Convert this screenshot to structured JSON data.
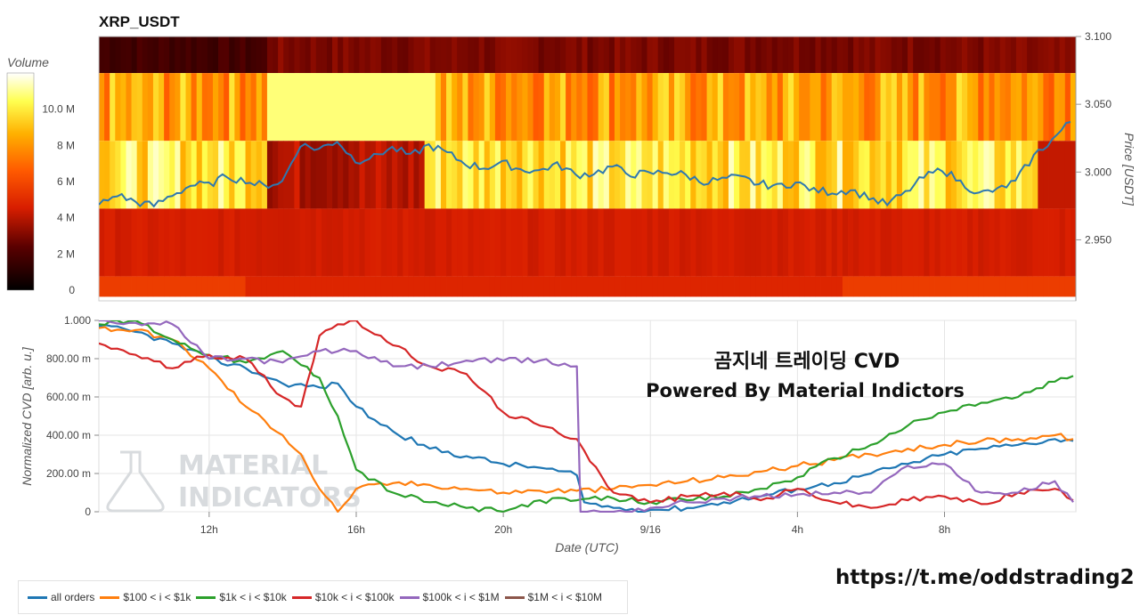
{
  "colors": {
    "all_orders": "#1f77b4",
    "s100_1k": "#ff7f0e",
    "s1k_10k": "#2ca02c",
    "s10k_100k": "#d62728",
    "s100k_1m": "#9467bd",
    "s1m_10m": "#8c564b",
    "price_line": "#2e78b0"
  },
  "chart_data": [
    {
      "type": "heatmap",
      "title": "XRP_USDT",
      "ylabel": "Price [USDT]",
      "ylim": [
        2.905,
        3.1
      ],
      "yticks": [
        "3.100",
        "3.050",
        "3.000",
        "2.950"
      ],
      "colorbar": {
        "label": "Volume",
        "ticks": [
          "10.0 M",
          "8 M",
          "6 M",
          "4 M",
          "2 M",
          "0"
        ],
        "range": [
          0,
          12
        ]
      },
      "price_bands": [
        {
          "low": 3.073,
          "high": 3.1,
          "base": 2.5
        },
        {
          "low": 3.023,
          "high": 3.073,
          "base": 7.0
        },
        {
          "low": 2.973,
          "high": 3.023,
          "base": 8.5
        },
        {
          "low": 2.923,
          "high": 2.973,
          "base": 4.4
        },
        {
          "low": 2.908,
          "high": 2.923,
          "base": 5.6
        }
      ],
      "price_series": [
        {
          "t": 0.0,
          "p": 2.976
        },
        {
          "t": 0.5,
          "p": 2.983
        },
        {
          "t": 1.0,
          "p": 2.978
        },
        {
          "t": 1.5,
          "p": 2.975
        },
        {
          "t": 2.0,
          "p": 2.983
        },
        {
          "t": 2.5,
          "p": 2.99
        },
        {
          "t": 3.0,
          "p": 2.991
        },
        {
          "t": 3.5,
          "p": 2.997
        },
        {
          "t": 4.0,
          "p": 2.993
        },
        {
          "t": 4.5,
          "p": 2.99
        },
        {
          "t": 5.0,
          "p": 2.993
        },
        {
          "t": 5.5,
          "p": 3.02
        },
        {
          "t": 6.0,
          "p": 3.017
        },
        {
          "t": 6.5,
          "p": 3.023
        },
        {
          "t": 7.0,
          "p": 3.008
        },
        {
          "t": 7.5,
          "p": 3.012
        },
        {
          "t": 8.0,
          "p": 3.018
        },
        {
          "t": 8.5,
          "p": 3.012
        },
        {
          "t": 9.0,
          "p": 3.02
        },
        {
          "t": 9.5,
          "p": 3.014
        },
        {
          "t": 10.0,
          "p": 3.006
        },
        {
          "t": 10.5,
          "p": 3.003
        },
        {
          "t": 11.0,
          "p": 3.007
        },
        {
          "t": 11.5,
          "p": 3.002
        },
        {
          "t": 12.0,
          "p": 3.001
        },
        {
          "t": 12.5,
          "p": 3.006
        },
        {
          "t": 13.0,
          "p": 2.998
        },
        {
          "t": 13.5,
          "p": 2.999
        },
        {
          "t": 14.0,
          "p": 3.004
        },
        {
          "t": 14.5,
          "p": 2.998
        },
        {
          "t": 15.0,
          "p": 2.999
        },
        {
          "t": 15.5,
          "p": 3.0
        },
        {
          "t": 16.0,
          "p": 2.998
        },
        {
          "t": 16.5,
          "p": 2.992
        },
        {
          "t": 17.0,
          "p": 2.995
        },
        {
          "t": 17.5,
          "p": 2.996
        },
        {
          "t": 18.0,
          "p": 2.991
        },
        {
          "t": 18.5,
          "p": 2.99
        },
        {
          "t": 19.0,
          "p": 2.992
        },
        {
          "t": 19.5,
          "p": 2.987
        },
        {
          "t": 20.0,
          "p": 2.985
        },
        {
          "t": 20.5,
          "p": 2.987
        },
        {
          "t": 21.0,
          "p": 2.981
        },
        {
          "t": 21.5,
          "p": 2.976
        },
        {
          "t": 22.0,
          "p": 2.985
        },
        {
          "t": 22.5,
          "p": 2.996
        },
        {
          "t": 23.0,
          "p": 3.002
        },
        {
          "t": 23.5,
          "p": 2.993
        },
        {
          "t": 24.0,
          "p": 2.984
        },
        {
          "t": 24.5,
          "p": 2.987
        },
        {
          "t": 25.0,
          "p": 2.993
        },
        {
          "t": 25.5,
          "p": 3.012
        },
        {
          "t": 26.0,
          "p": 3.024
        },
        {
          "t": 26.5,
          "p": 3.037
        }
      ]
    },
    {
      "type": "line",
      "xlabel": "Date (UTC)",
      "ylabel": "Normalized CVD [arb. u.]",
      "xlim": [
        0,
        26.5
      ],
      "ylim": [
        0,
        1.0
      ],
      "xticks": [
        {
          "t": 3.0,
          "label": "12h"
        },
        {
          "t": 7.0,
          "label": "16h"
        },
        {
          "t": 11.0,
          "label": "20h"
        },
        {
          "t": 15.0,
          "label": "9/16"
        },
        {
          "t": 19.0,
          "label": "4h"
        },
        {
          "t": 23.0,
          "label": "8h"
        }
      ],
      "yticks": [
        {
          "v": 1.0,
          "label": "1.000"
        },
        {
          "v": 0.8,
          "label": "800.00 m"
        },
        {
          "v": 0.6,
          "label": "600.00 m"
        },
        {
          "v": 0.4,
          "label": "400.00 m"
        },
        {
          "v": 0.2,
          "label": "200.00 m"
        },
        {
          "v": 0.0,
          "label": "0"
        }
      ],
      "series": [
        {
          "name": "all orders",
          "color_key": "all_orders",
          "x": [
            0,
            1,
            2,
            3,
            4,
            5,
            6,
            6.5,
            7,
            7.5,
            8,
            9,
            10,
            11,
            12,
            13,
            13.2,
            14,
            15,
            16,
            17,
            18,
            19,
            20,
            21,
            22,
            23,
            24,
            25,
            26,
            26.5
          ],
          "y": [
            0.97,
            0.94,
            0.88,
            0.8,
            0.75,
            0.67,
            0.65,
            0.67,
            0.55,
            0.48,
            0.42,
            0.33,
            0.29,
            0.25,
            0.23,
            0.19,
            0.05,
            0.02,
            0.01,
            0.02,
            0.05,
            0.08,
            0.12,
            0.15,
            0.2,
            0.25,
            0.3,
            0.33,
            0.35,
            0.38,
            0.37
          ]
        },
        {
          "name": "$100 < i < $1k",
          "color_key": "s100_1k",
          "x": [
            0,
            1,
            2,
            3,
            4,
            5,
            5.5,
            6,
            6.5,
            7,
            8,
            9,
            10,
            11,
            12,
            13,
            14,
            15,
            16,
            17,
            18,
            19,
            20,
            21,
            22,
            23,
            24,
            25,
            26,
            26.5
          ],
          "y": [
            0.96,
            0.95,
            0.9,
            0.75,
            0.55,
            0.4,
            0.3,
            0.12,
            0.0,
            0.12,
            0.15,
            0.14,
            0.12,
            0.1,
            0.11,
            0.11,
            0.12,
            0.14,
            0.16,
            0.18,
            0.21,
            0.24,
            0.27,
            0.3,
            0.33,
            0.35,
            0.37,
            0.38,
            0.4,
            0.38
          ]
        },
        {
          "name": "$1k < i < $10k",
          "color_key": "s1k_10k",
          "x": [
            0,
            1,
            2,
            3,
            4,
            4.5,
            5,
            6,
            6.5,
            7,
            8,
            9,
            10,
            11,
            12,
            13,
            14,
            15,
            16,
            17,
            18,
            19,
            20,
            21,
            22,
            23,
            24,
            25,
            26,
            26.5
          ],
          "y": [
            0.98,
            1.0,
            0.9,
            0.82,
            0.78,
            0.8,
            0.84,
            0.7,
            0.5,
            0.22,
            0.1,
            0.05,
            0.02,
            0.0,
            0.06,
            0.06,
            0.07,
            0.05,
            0.06,
            0.08,
            0.12,
            0.18,
            0.28,
            0.35,
            0.45,
            0.52,
            0.57,
            0.6,
            0.68,
            0.71
          ]
        },
        {
          "name": "$10k < i < $100k",
          "color_key": "s10k_100k",
          "x": [
            0,
            1,
            2,
            3,
            4,
            5,
            5.5,
            6,
            6.5,
            7,
            8,
            9,
            10,
            11,
            12,
            13,
            13.2,
            14,
            15,
            16,
            17,
            18,
            19,
            20,
            21,
            22,
            23,
            24,
            25,
            26,
            26.5
          ],
          "y": [
            0.88,
            0.82,
            0.75,
            0.82,
            0.8,
            0.6,
            0.55,
            0.92,
            0.98,
            1.0,
            0.87,
            0.76,
            0.72,
            0.52,
            0.45,
            0.38,
            0.32,
            0.1,
            0.05,
            0.08,
            0.1,
            0.06,
            0.12,
            0.05,
            0.02,
            0.06,
            0.08,
            0.04,
            0.1,
            0.12,
            0.06
          ]
        },
        {
          "name": "$100k < i < $1M",
          "color_key": "s100k_1m",
          "x": [
            0,
            2,
            3,
            4,
            5,
            6,
            7,
            8,
            9,
            10,
            11,
            12,
            13,
            13.1,
            14,
            15,
            16,
            17,
            18,
            19,
            20,
            21,
            22,
            23,
            24,
            25,
            26,
            26.5
          ],
          "y": [
            1.0,
            0.98,
            0.8,
            0.8,
            0.78,
            0.84,
            0.84,
            0.76,
            0.76,
            0.79,
            0.79,
            0.79,
            0.76,
            0.0,
            0.0,
            0.02,
            0.05,
            0.07,
            0.08,
            0.09,
            0.1,
            0.1,
            0.24,
            0.25,
            0.1,
            0.1,
            0.16,
            0.05
          ]
        },
        {
          "name": "$1M < i < $10M",
          "color_key": "s1m_10m",
          "x": [],
          "y": []
        }
      ]
    }
  ],
  "overlay": {
    "line1": "곰지네 트레이딩 CVD",
    "line2": "Powered By Material Indictors"
  },
  "watermark": {
    "line1": "MATERIAL",
    "line2": "INDICATORS"
  },
  "link": "https://t.me/oddstrading2",
  "legend": [
    {
      "label": "all orders",
      "color_key": "all_orders"
    },
    {
      "label": "$100 < i < $1k",
      "color_key": "s100_1k"
    },
    {
      "label": "$1k < i < $10k",
      "color_key": "s1k_10k"
    },
    {
      "label": "$10k < i < $100k",
      "color_key": "s10k_100k"
    },
    {
      "label": "$100k < i < $1M",
      "color_key": "s100k_1m"
    },
    {
      "label": "$1M < i < $10M",
      "color_key": "s1m_10m"
    }
  ]
}
